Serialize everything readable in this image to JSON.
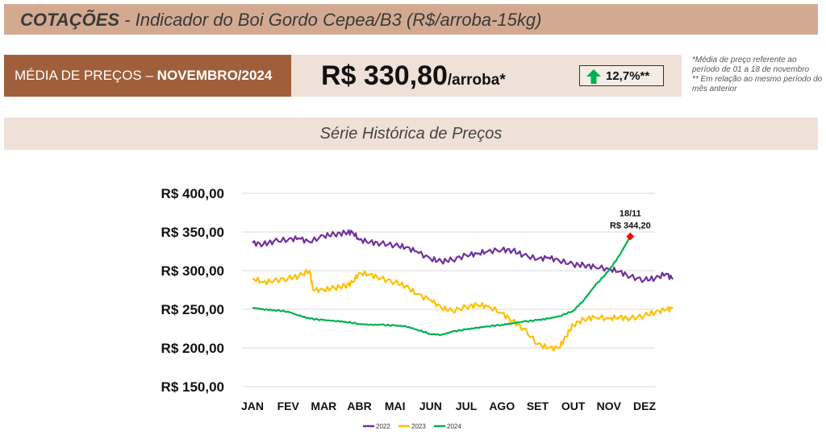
{
  "header": {
    "title_bold": "COTAÇÕES",
    "title_rest": " - Indicador do Boi Gordo Cepea/B3 (R$/arroba-15kg)"
  },
  "price": {
    "label": "MÉDIA DE PREÇOS – ",
    "period": "NOVEMBRO/2024",
    "value": "R$ 330,80",
    "unit": "/arroba*",
    "change": "12,7%**",
    "arrow_icon": "arrow-up-icon"
  },
  "notes": {
    "line1": "*Média de preço referente ao período de 01 a 18 de novembro",
    "line2": "** Em relação ao mesmo período do mês anterior"
  },
  "section": {
    "title": "Série Histórica de Preços"
  },
  "chart_data": {
    "type": "line",
    "title": "",
    "xlabel": "",
    "ylabel": "",
    "categories": [
      "JAN",
      "FEV",
      "MAR",
      "ABR",
      "MAI",
      "JUN",
      "JUL",
      "AGO",
      "SET",
      "OUT",
      "NOV",
      "DEZ"
    ],
    "y_ticks": [
      "R$ 150,00",
      "R$ 200,00",
      "R$ 250,00",
      "R$ 300,00",
      "R$ 350,00",
      "R$ 400,00"
    ],
    "ylim": [
      150,
      400
    ],
    "grid": true,
    "legend": "bottom",
    "annotation": {
      "date": "18/11",
      "value_label": "R$ 344,20",
      "value": 344.2,
      "x": 10.6,
      "color": "#ff0000"
    },
    "series": [
      {
        "name": "2022",
        "color": "#7030a0",
        "x": [
          0,
          0.3,
          0.6,
          1,
          1.3,
          1.6,
          2,
          2.3,
          2.6,
          2.8,
          3,
          3.3,
          3.6,
          4,
          4.3,
          4.6,
          5,
          5.3,
          5.6,
          6,
          6.3,
          6.6,
          7,
          7.3,
          7.6,
          8,
          8.3,
          8.6,
          9,
          9.3,
          9.6,
          10,
          10.3,
          10.6,
          11,
          11.3,
          11.6,
          11.8
        ],
        "y": [
          336,
          334,
          338,
          340,
          342,
          337,
          345,
          347,
          349,
          350,
          340,
          337,
          335,
          333,
          330,
          325,
          315,
          312,
          314,
          320,
          322,
          325,
          327,
          326,
          320,
          315,
          317,
          313,
          308,
          307,
          305,
          302,
          299,
          292,
          288,
          290,
          296,
          289
        ]
      },
      {
        "name": "2023",
        "color": "#ffc000",
        "x": [
          0,
          0.3,
          0.6,
          1,
          1.3,
          1.6,
          1.7,
          2,
          2.3,
          2.6,
          2.8,
          3,
          3.3,
          3.6,
          4,
          4.3,
          4.6,
          5,
          5.3,
          5.6,
          6,
          6.3,
          6.6,
          7,
          7.3,
          7.6,
          8,
          8.3,
          8.6,
          8.8,
          9,
          9.3,
          9.6,
          10,
          10.3,
          10.6,
          11,
          11.3,
          11.6,
          11.8
        ],
        "y": [
          290,
          285,
          287,
          290,
          293,
          300,
          275,
          275,
          278,
          280,
          285,
          297,
          295,
          290,
          285,
          280,
          270,
          262,
          252,
          248,
          253,
          256,
          254,
          245,
          235,
          225,
          205,
          200,
          200,
          215,
          230,
          237,
          240,
          238,
          240,
          238,
          242,
          246,
          250,
          251
        ]
      },
      {
        "name": "2024",
        "color": "#00b050",
        "x": [
          0,
          0.3,
          0.6,
          1,
          1.3,
          1.6,
          2,
          2.3,
          2.6,
          3,
          3.3,
          3.6,
          4,
          4.3,
          4.6,
          5,
          5.3,
          5.6,
          6,
          6.3,
          6.6,
          7,
          7.3,
          7.6,
          8,
          8.3,
          8.6,
          9,
          9.3,
          9.6,
          10,
          10.3,
          10.6
        ],
        "y": [
          252,
          250,
          249,
          247,
          242,
          238,
          236,
          235,
          234,
          231,
          230,
          230,
          229,
          228,
          224,
          218,
          217,
          221,
          224,
          226,
          228,
          230,
          232,
          234,
          236,
          238,
          241,
          248,
          262,
          280,
          300,
          320,
          344.2
        ]
      }
    ]
  }
}
